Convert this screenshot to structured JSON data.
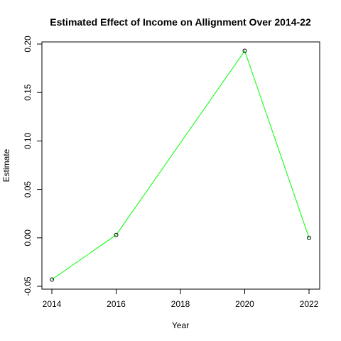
{
  "chart_data": {
    "type": "line",
    "title": "Estimated Effect of Income on Allignment Over 2014-22",
    "xlabel": "Year",
    "ylabel": "Estimate",
    "x": [
      2014,
      2016,
      2020,
      2022
    ],
    "y": [
      -0.043,
      0.003,
      0.193,
      0.0
    ],
    "xlim": [
      2014,
      2022
    ],
    "ylim": [
      -0.05,
      0.2
    ],
    "xticks": [
      2014,
      2016,
      2018,
      2020,
      2022
    ],
    "yticks": [
      -0.05,
      0.0,
      0.05,
      0.1,
      0.15,
      0.2
    ],
    "xtick_labels": [
      "2014",
      "2016",
      "2018",
      "2020",
      "2022"
    ],
    "ytick_labels": [
      "-0.05",
      "0.00",
      "0.05",
      "0.10",
      "0.15",
      "0.20"
    ],
    "line_color": "#00ff00",
    "marker_color": "#000000",
    "grid": false,
    "legend": "none"
  }
}
